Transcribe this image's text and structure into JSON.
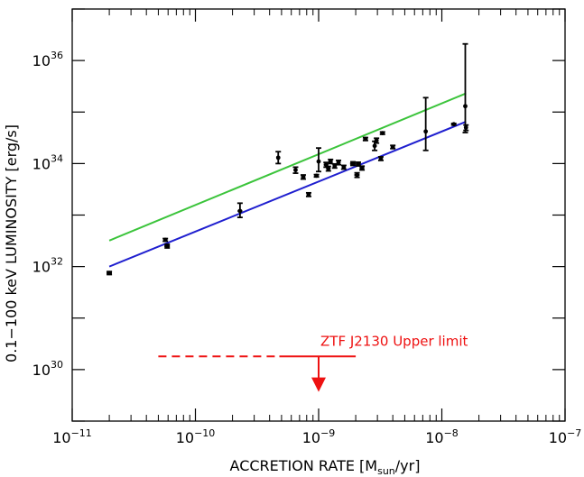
{
  "chart_data": {
    "type": "scatter",
    "xlabel": "ACCRETION RATE  [M",
    "xlabel_sub": "sun",
    "xlabel_tail": "/yr]",
    "ylabel": "0.1−100 keV LUMINOSITY  [erg/s]",
    "x_scale": "log",
    "y_scale": "log",
    "xlim": [
      1e-11,
      1e-07
    ],
    "ylim": [
      1e+29,
      1e+37
    ],
    "x_ticks": [
      {
        "value": 1e-11,
        "base": "10",
        "exp": "−11"
      },
      {
        "value": 1e-10,
        "base": "10",
        "exp": "−10"
      },
      {
        "value": 1e-09,
        "base": "10",
        "exp": "−9"
      },
      {
        "value": 1e-08,
        "base": "10",
        "exp": "−8"
      },
      {
        "value": 1e-07,
        "base": "10",
        "exp": "−7"
      }
    ],
    "y_ticks": [
      {
        "value": 1e+30,
        "base": "10",
        "exp": "30"
      },
      {
        "value": 1e+32,
        "base": "10",
        "exp": "32"
      },
      {
        "value": 1e+34,
        "base": "10",
        "exp": "34"
      },
      {
        "value": 1e+36,
        "base": "10",
        "exp": "36"
      }
    ],
    "grid": false,
    "points": [
      {
        "x": 2e-11,
        "y": 7.5e+31,
        "xerr": [
          1.9e-11,
          2.1e-11
        ],
        "yerr": [
          7e+31,
          8e+31
        ]
      },
      {
        "x": 5.7e-11,
        "y": 3.3e+32,
        "xerr": [
          5.5e-11,
          5.9e-11
        ],
        "yerr": [
          3.1e+32,
          3.5e+32
        ]
      },
      {
        "x": 5.9e-11,
        "y": 2.5e+32,
        "xerr": [
          5.6e-11,
          6.2e-11
        ],
        "yerr": [
          2.3e+32,
          2.7e+32
        ]
      },
      {
        "x": 2.3e-10,
        "y": 1.2e+33,
        "xerr": [
          2.2e-10,
          2.4e-10
        ],
        "yerr": [
          9e+32,
          1.7e+33
        ]
      },
      {
        "x": 4.7e-10,
        "y": 1.3e+34,
        "xerr": [
          4.6e-10,
          4.8e-10
        ],
        "yerr": [
          1e+34,
          1.7e+34
        ]
      },
      {
        "x": 6.5e-10,
        "y": 7.5e+33,
        "xerr": [
          6.3e-10,
          6.7e-10
        ],
        "yerr": [
          6.5e+33,
          8.5e+33
        ]
      },
      {
        "x": 7.5e-10,
        "y": 5.5e+33,
        "xerr": [
          7.2e-10,
          7.8e-10
        ],
        "yerr": [
          5e+33,
          6e+33
        ]
      },
      {
        "x": 8.3e-10,
        "y": 2.5e+33,
        "xerr": [
          8e-10,
          8.6e-10
        ],
        "yerr": [
          2.3e+33,
          2.7e+33
        ]
      },
      {
        "x": 9.6e-10,
        "y": 5.8e+33,
        "xerr": [
          9.3e-10,
          9.9e-10
        ],
        "yerr": [
          5.5e+33,
          6.1e+33
        ]
      },
      {
        "x": 1e-09,
        "y": 1.1e+34,
        "xerr": [
          9.8e-10,
          1.02e-09
        ],
        "yerr": [
          7e+33,
          2e+34
        ]
      },
      {
        "x": 1.15e-09,
        "y": 9.5e+33,
        "xerr": [
          1.1e-09,
          1.2e-09
        ],
        "yerr": [
          8.5e+33,
          1.05e+34
        ]
      },
      {
        "x": 1.2e-09,
        "y": 8e+33,
        "xerr": [
          1.15e-09,
          1.25e-09
        ],
        "yerr": [
          7.2e+33,
          8.8e+33
        ]
      },
      {
        "x": 1.25e-09,
        "y": 1.1e+34,
        "xerr": [
          1.2e-09,
          1.3e-09
        ],
        "yerr": [
          1e+34,
          1.2e+34
        ]
      },
      {
        "x": 1.35e-09,
        "y": 9e+33,
        "xerr": [
          1.3e-09,
          1.4e-09
        ],
        "yerr": [
          8.2e+33,
          9.8e+33
        ]
      },
      {
        "x": 1.45e-09,
        "y": 1.05e+34,
        "xerr": [
          1.4e-09,
          1.5e-09
        ],
        "yerr": [
          9.5e+33,
          1.15e+34
        ]
      },
      {
        "x": 1.6e-09,
        "y": 8.5e+33,
        "xerr": [
          1.55e-09,
          1.65e-09
        ],
        "yerr": [
          7.8e+33,
          9.2e+33
        ]
      },
      {
        "x": 1.9e-09,
        "y": 1e+34,
        "xerr": [
          1.8e-09,
          2e-09
        ],
        "yerr": [
          9.2e+33,
          1.08e+34
        ]
      },
      {
        "x": 2.05e-09,
        "y": 6e+33,
        "xerr": [
          1.95e-09,
          2.15e-09
        ],
        "yerr": [
          5.4e+33,
          6.6e+33
        ]
      },
      {
        "x": 2.1e-09,
        "y": 9.8e+33,
        "xerr": [
          2e-09,
          2.2e-09
        ],
        "yerr": [
          9e+33,
          1.06e+34
        ]
      },
      {
        "x": 2.25e-09,
        "y": 8.2e+33,
        "xerr": [
          2.15e-09,
          2.35e-09
        ],
        "yerr": [
          7.5e+33,
          8.9e+33
        ]
      },
      {
        "x": 2.4e-09,
        "y": 3e+34,
        "xerr": [
          2.3e-09,
          2.5e-09
        ],
        "yerr": [
          2.8e+34,
          3.2e+34
        ]
      },
      {
        "x": 2.85e-09,
        "y": 2.2e+34,
        "xerr": [
          2.75e-09,
          2.95e-09
        ],
        "yerr": [
          1.8e+34,
          2.7e+34
        ]
      },
      {
        "x": 2.95e-09,
        "y": 2.8e+34,
        "xerr": [
          2.85e-09,
          3.05e-09
        ],
        "yerr": [
          2.5e+34,
          3.1e+34
        ]
      },
      {
        "x": 3.2e-09,
        "y": 1.25e+34,
        "xerr": [
          3.1e-09,
          3.3e-09
        ],
        "yerr": [
          1.15e+34,
          1.35e+34
        ]
      },
      {
        "x": 3.3e-09,
        "y": 3.9e+34,
        "xerr": [
          3.2e-09,
          3.4e-09
        ],
        "yerr": [
          3.7e+34,
          4.1e+34
        ]
      },
      {
        "x": 4e-09,
        "y": 2.1e+34,
        "xerr": [
          3.85e-09,
          4.15e-09
        ],
        "yerr": [
          1.95e+34,
          2.25e+34
        ]
      },
      {
        "x": 7.4e-09,
        "y": 4.2e+34,
        "xerr": [
          7.2e-09,
          7.6e-09
        ],
        "yerr": [
          1.8e+34,
          1.9e+35
        ]
      },
      {
        "x": 1.25e-08,
        "y": 5.8e+34,
        "xerr": [
          1.2e-08,
          1.3e-08
        ],
        "yerr": [
          5.6e+34,
          6e+34
        ]
      },
      {
        "x": 1.55e-08,
        "y": 1.3e+35,
        "xerr": [
          1.53e-08,
          1.57e-08
        ],
        "yerr": [
          4e+34,
          2.1e+36
        ]
      },
      {
        "x": 1.57e-08,
        "y": 5e+34,
        "xerr": [
          1.55e-08,
          1.59e-08
        ],
        "yerr": [
          4.4e+34,
          5.6e+34
        ]
      }
    ],
    "lines": [
      {
        "color": "#3bc43b",
        "x": [
          2e-11,
          1.57e-08
        ],
        "y": [
          3.2e+32,
          2.3e+35
        ]
      },
      {
        "color": "#1f1fcf",
        "x": [
          2e-11,
          1.57e-08
        ],
        "y": [
          1e+32,
          6.5e+34
        ]
      }
    ],
    "upper_limit": {
      "label": "ZTF J2130 Upper limit",
      "color": "#ee1111",
      "dashed_x": [
        5e-11,
        4.8e-10
      ],
      "solid_x": [
        4.8e-10,
        2e-09
      ],
      "y": 1.8e+30,
      "arrow_x": 1e-09,
      "arrow_to_y": 4e+29
    }
  }
}
